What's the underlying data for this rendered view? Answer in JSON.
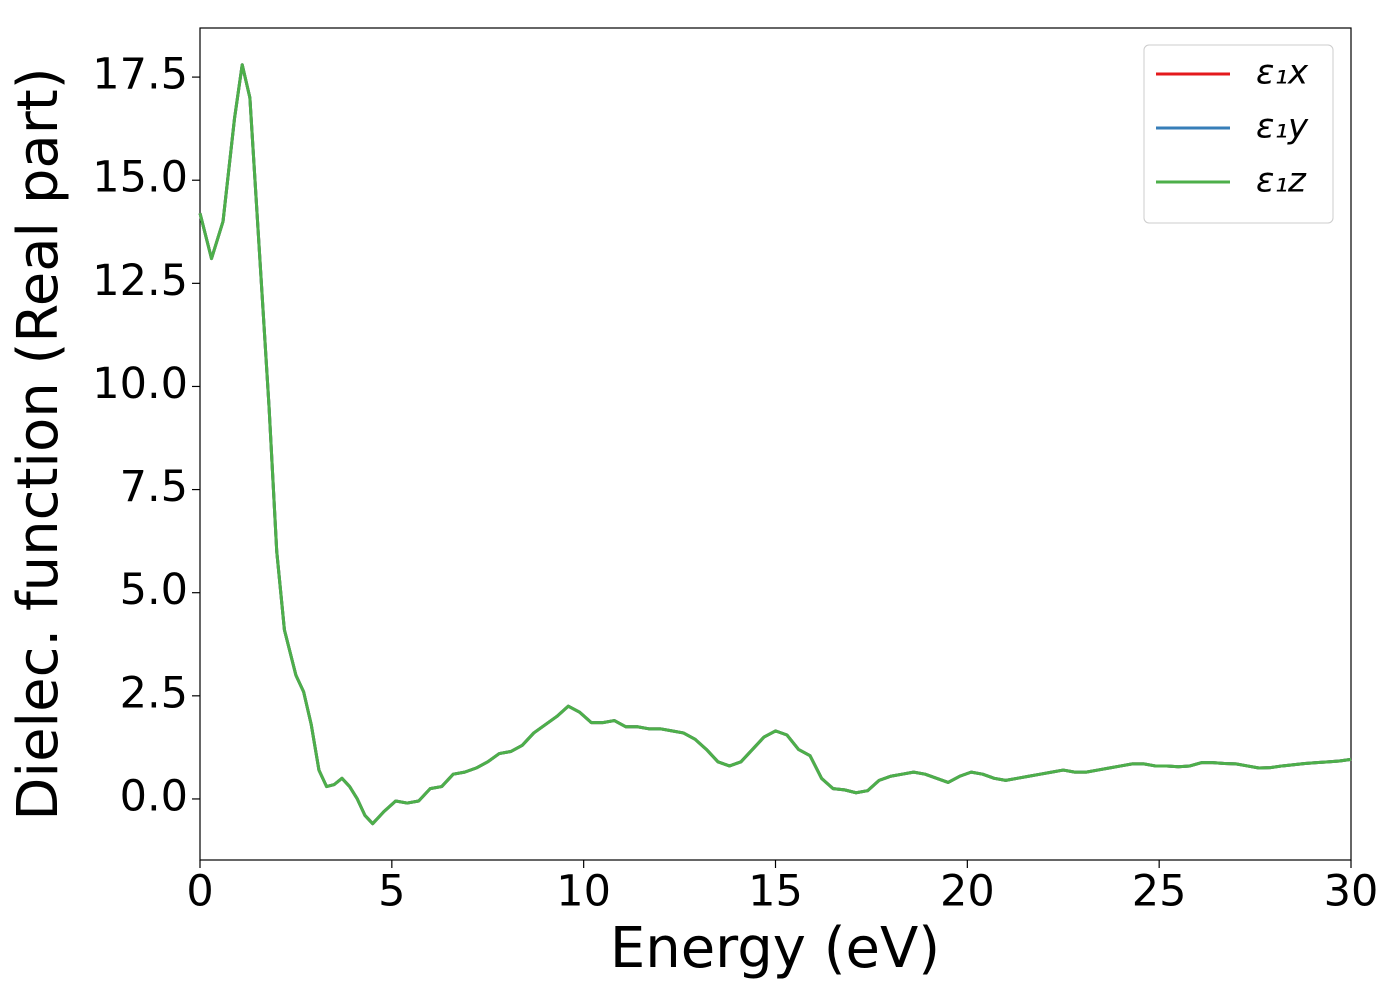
{
  "chart_data": {
    "type": "line",
    "xlabel": "Energy (eV)",
    "ylabel": "Dielec. function (Real part)",
    "x": [
      0,
      0.3,
      0.6,
      0.9,
      1.1,
      1.3,
      1.6,
      1.8,
      2.0,
      2.2,
      2.5,
      2.7,
      2.9,
      3.1,
      3.3,
      3.5,
      3.7,
      3.9,
      4.1,
      4.3,
      4.5,
      4.8,
      5.1,
      5.4,
      5.7,
      6.0,
      6.3,
      6.6,
      6.9,
      7.2,
      7.5,
      7.8,
      8.1,
      8.4,
      8.7,
      9.0,
      9.3,
      9.6,
      9.9,
      10.2,
      10.5,
      10.8,
      11.1,
      11.4,
      11.7,
      12.0,
      12.3,
      12.6,
      12.9,
      13.2,
      13.5,
      13.8,
      14.1,
      14.4,
      14.7,
      15.0,
      15.3,
      15.6,
      15.9,
      16.2,
      16.5,
      16.8,
      17.1,
      17.4,
      17.7,
      18.0,
      18.3,
      18.6,
      18.9,
      19.2,
      19.5,
      19.8,
      20.1,
      20.4,
      20.7,
      21.0,
      21.3,
      21.6,
      21.9,
      22.2,
      22.5,
      22.8,
      23.1,
      23.4,
      23.7,
      24.0,
      24.3,
      24.6,
      24.9,
      25.2,
      25.5,
      25.8,
      26.1,
      26.4,
      26.7,
      27.0,
      27.3,
      27.6,
      27.9,
      28.2,
      28.5,
      28.8,
      29.1,
      29.4,
      29.7,
      30.0
    ],
    "series": [
      {
        "name": "ε₁x",
        "color": "#e41a1c",
        "values": [
          14.2,
          13.1,
          14.0,
          16.5,
          17.8,
          17.0,
          12.5,
          9.5,
          6.0,
          4.1,
          3.0,
          2.6,
          1.8,
          0.7,
          0.3,
          0.35,
          0.5,
          0.3,
          0.0,
          -0.4,
          -0.6,
          -0.3,
          -0.05,
          -0.1,
          -0.05,
          0.25,
          0.3,
          0.6,
          0.65,
          0.75,
          0.9,
          1.1,
          1.15,
          1.3,
          1.6,
          1.8,
          2.0,
          2.25,
          2.1,
          1.85,
          1.85,
          1.9,
          1.75,
          1.75,
          1.7,
          1.7,
          1.65,
          1.6,
          1.45,
          1.2,
          0.9,
          0.8,
          0.9,
          1.2,
          1.5,
          1.65,
          1.55,
          1.2,
          1.05,
          0.5,
          0.25,
          0.22,
          0.15,
          0.2,
          0.45,
          0.55,
          0.6,
          0.65,
          0.6,
          0.5,
          0.4,
          0.55,
          0.65,
          0.6,
          0.5,
          0.45,
          0.5,
          0.55,
          0.6,
          0.65,
          0.7,
          0.65,
          0.65,
          0.7,
          0.75,
          0.8,
          0.85,
          0.85,
          0.8,
          0.8,
          0.78,
          0.8,
          0.88,
          0.88,
          0.86,
          0.85,
          0.8,
          0.75,
          0.76,
          0.8,
          0.83,
          0.86,
          0.88,
          0.9,
          0.92,
          0.96
        ]
      },
      {
        "name": "ε₁y",
        "color": "#377eb8",
        "values": [
          14.2,
          13.1,
          14.0,
          16.5,
          17.8,
          17.0,
          12.5,
          9.5,
          6.0,
          4.1,
          3.0,
          2.6,
          1.8,
          0.7,
          0.3,
          0.35,
          0.5,
          0.3,
          0.0,
          -0.4,
          -0.6,
          -0.3,
          -0.05,
          -0.1,
          -0.05,
          0.25,
          0.3,
          0.6,
          0.65,
          0.75,
          0.9,
          1.1,
          1.15,
          1.3,
          1.6,
          1.8,
          2.0,
          2.25,
          2.1,
          1.85,
          1.85,
          1.9,
          1.75,
          1.75,
          1.7,
          1.7,
          1.65,
          1.6,
          1.45,
          1.2,
          0.9,
          0.8,
          0.9,
          1.2,
          1.5,
          1.65,
          1.55,
          1.2,
          1.05,
          0.5,
          0.25,
          0.22,
          0.15,
          0.2,
          0.45,
          0.55,
          0.6,
          0.65,
          0.6,
          0.5,
          0.4,
          0.55,
          0.65,
          0.6,
          0.5,
          0.45,
          0.5,
          0.55,
          0.6,
          0.65,
          0.7,
          0.65,
          0.65,
          0.7,
          0.75,
          0.8,
          0.85,
          0.85,
          0.8,
          0.8,
          0.78,
          0.8,
          0.88,
          0.88,
          0.86,
          0.85,
          0.8,
          0.75,
          0.76,
          0.8,
          0.83,
          0.86,
          0.88,
          0.9,
          0.92,
          0.96
        ]
      },
      {
        "name": "ε₁z",
        "color": "#4daf4a",
        "values": [
          14.2,
          13.1,
          14.0,
          16.5,
          17.8,
          17.0,
          12.5,
          9.5,
          6.0,
          4.1,
          3.0,
          2.6,
          1.8,
          0.7,
          0.3,
          0.35,
          0.5,
          0.3,
          0.0,
          -0.4,
          -0.6,
          -0.3,
          -0.05,
          -0.1,
          -0.05,
          0.25,
          0.3,
          0.6,
          0.65,
          0.75,
          0.9,
          1.1,
          1.15,
          1.3,
          1.6,
          1.8,
          2.0,
          2.25,
          2.1,
          1.85,
          1.85,
          1.9,
          1.75,
          1.75,
          1.7,
          1.7,
          1.65,
          1.6,
          1.45,
          1.2,
          0.9,
          0.8,
          0.9,
          1.2,
          1.5,
          1.65,
          1.55,
          1.2,
          1.05,
          0.5,
          0.25,
          0.22,
          0.15,
          0.2,
          0.45,
          0.55,
          0.6,
          0.65,
          0.6,
          0.5,
          0.4,
          0.55,
          0.65,
          0.6,
          0.5,
          0.45,
          0.5,
          0.55,
          0.6,
          0.65,
          0.7,
          0.65,
          0.65,
          0.7,
          0.75,
          0.8,
          0.85,
          0.85,
          0.8,
          0.8,
          0.78,
          0.8,
          0.88,
          0.88,
          0.86,
          0.85,
          0.8,
          0.75,
          0.76,
          0.8,
          0.83,
          0.86,
          0.88,
          0.9,
          0.92,
          0.96
        ]
      }
    ],
    "xlim": [
      0,
      30
    ],
    "xticks": [
      0,
      5,
      10,
      15,
      20,
      25,
      30
    ],
    "ylim": [
      -1.48,
      18.69
    ],
    "yticks": [
      {
        "value": 0,
        "label": "0.0"
      },
      2.5,
      {
        "value": 5,
        "label": "5.0"
      },
      7.5,
      {
        "value": 10,
        "label": "10.0"
      },
      12.5,
      {
        "value": 15,
        "label": "15.0"
      },
      17.5
    ],
    "grid": false,
    "legend": "upper right"
  }
}
